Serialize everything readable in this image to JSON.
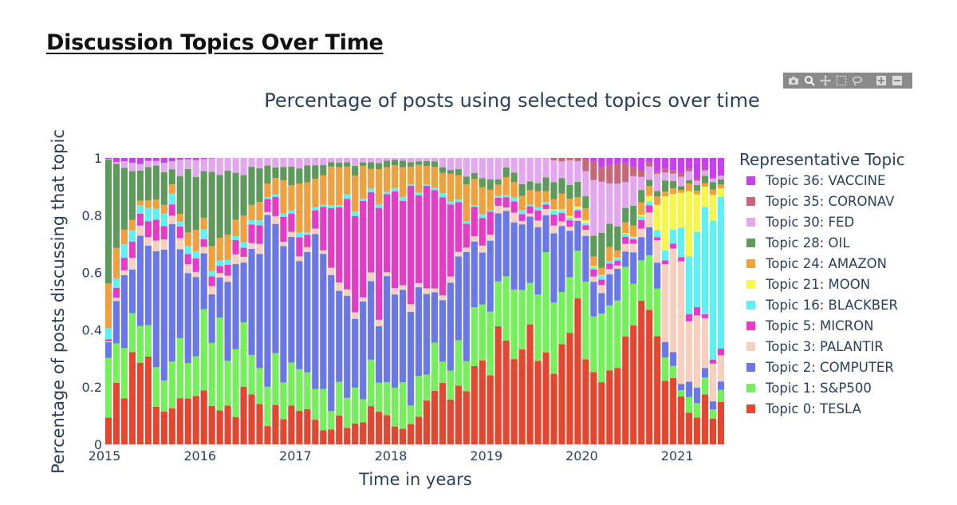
{
  "page": {
    "heading": "Discussion Topics Over Time"
  },
  "modebar": {
    "icons": [
      "camera-icon",
      "zoom-icon",
      "pan-icon",
      "box-select-icon",
      "lasso-icon",
      "zoom-in-icon",
      "zoom-out-icon"
    ]
  },
  "chart_data": {
    "type": "bar",
    "stacking": "normalized",
    "title": "Percentage of posts using selected topics over time",
    "xlabel": "Time in years",
    "ylabel": "Percentage of posts discussing that topic",
    "xlim": [
      2015,
      2021.5
    ],
    "ylim": [
      0,
      1
    ],
    "x_ticks": [
      "2015",
      "2016",
      "2017",
      "2018",
      "2019",
      "2020",
      "2021"
    ],
    "y_ticks": [
      "0",
      "0.2",
      "0.4",
      "0.6",
      "0.8",
      "1"
    ],
    "grid": false,
    "legend": {
      "title": "Representative Topic",
      "placement": "right",
      "entries": [
        "Topic 36: VACCINE",
        "Topic 35: CORONAVIRUS",
        "Topic 30: FED",
        "Topic 28: OIL",
        "Topic 24: AMAZON",
        "Topic 21: MOON",
        "Topic 16: BLACKBERRY",
        "Topic 5: MICRON",
        "Topic 3: PALANTIR",
        "Topic 2: COMPUTER",
        "Topic 1: S&P500",
        "Topic 0: TESLA"
      ]
    },
    "colors": {
      "Topic 0: TESLA": "#e5462f",
      "Topic 1: S&P500": "#74f05a",
      "Topic 2: COMPUTER": "#6a77e6",
      "Topic 3: PALANTIR": "#f7cfbf",
      "Topic 5: MICRON": "#e83ac8",
      "Topic 16: BLACKBERRY": "#5ff0f2",
      "Topic 21: MOON": "#f6f74a",
      "Topic 24: AMAZON": "#f0a03c",
      "Topic 28: OIL": "#5e9a5c",
      "Topic 30: FED": "#e3a7f0",
      "Topic 35: CORONAVIRUS": "#c8677a",
      "Topic 36: VACCINE": "#c940f0"
    },
    "anchors": [
      {
        "x": 2015.0,
        "Topic 0: TESLA": 0.07,
        "Topic 1: S&P500": 0.22,
        "Topic 2: COMPUTER": 0.07,
        "Topic 3: PALANTIR": 0.0,
        "Topic 5: MICRON": 0.0,
        "Topic 16: BLACKBERRY": 0.04,
        "Topic 21: MOON": 0.0,
        "Topic 24: AMAZON": 0.14,
        "Topic 28: OIL": 0.46,
        "Topic 30: FED": 0.0,
        "Topic 35: CORONAVIRUS": 0.0,
        "Topic 36: VACCINE": 0.0
      },
      {
        "x": 2015.3,
        "Topic 0: TESLA": 0.28,
        "Topic 1: S&P500": 0.14,
        "Topic 2: COMPUTER": 0.2,
        "Topic 3: PALANTIR": 0.03,
        "Topic 5: MICRON": 0.06,
        "Topic 16: BLACKBERRY": 0.04,
        "Topic 21: MOON": 0.0,
        "Topic 24: AMAZON": 0.02,
        "Topic 28: OIL": 0.19,
        "Topic 30: FED": 0.02,
        "Topic 35: CORONAVIRUS": 0.0,
        "Topic 36: VACCINE": 0.02
      },
      {
        "x": 2015.7,
        "Topic 0: TESLA": 0.13,
        "Topic 1: S&P500": 0.12,
        "Topic 2: COMPUTER": 0.45,
        "Topic 3: PALANTIR": 0.03,
        "Topic 5: MICRON": 0.06,
        "Topic 16: BLACKBERRY": 0.03,
        "Topic 21: MOON": 0.0,
        "Topic 24: AMAZON": 0.04,
        "Topic 28: OIL": 0.09,
        "Topic 30: FED": 0.04,
        "Topic 35: CORONAVIRUS": 0.0,
        "Topic 36: VACCINE": 0.01
      },
      {
        "x": 2016.2,
        "Topic 0: TESLA": 0.15,
        "Topic 1: S&P500": 0.28,
        "Topic 2: COMPUTER": 0.12,
        "Topic 3: PALANTIR": 0.02,
        "Topic 5: MICRON": 0.03,
        "Topic 16: BLACKBERRY": 0.02,
        "Topic 21: MOON": 0.0,
        "Topic 24: AMAZON": 0.07,
        "Topic 28: OIL": 0.26,
        "Topic 30: FED": 0.05,
        "Topic 35: CORONAVIRUS": 0.0,
        "Topic 36: VACCINE": 0.0
      },
      {
        "x": 2016.7,
        "Topic 0: TESLA": 0.11,
        "Topic 1: S&P500": 0.13,
        "Topic 2: COMPUTER": 0.52,
        "Topic 3: PALANTIR": 0.02,
        "Topic 5: MICRON": 0.05,
        "Topic 16: BLACKBERRY": 0.01,
        "Topic 21: MOON": 0.0,
        "Topic 24: AMAZON": 0.07,
        "Topic 28: OIL": 0.06,
        "Topic 30: FED": 0.03,
        "Topic 35: CORONAVIRUS": 0.0,
        "Topic 36: VACCINE": 0.0
      },
      {
        "x": 2017.2,
        "Topic 0: TESLA": 0.08,
        "Topic 1: S&P500": 0.14,
        "Topic 2: COMPUTER": 0.5,
        "Topic 3: PALANTIR": 0.02,
        "Topic 5: MICRON": 0.07,
        "Topic 16: BLACKBERRY": 0.01,
        "Topic 21: MOON": 0.0,
        "Topic 24: AMAZON": 0.12,
        "Topic 28: OIL": 0.04,
        "Topic 30: FED": 0.02,
        "Topic 35: CORONAVIRUS": 0.0,
        "Topic 36: VACCINE": 0.0
      },
      {
        "x": 2017.6,
        "Topic 0: TESLA": 0.09,
        "Topic 1: S&P500": 0.12,
        "Topic 2: COMPUTER": 0.3,
        "Topic 3: PALANTIR": 0.02,
        "Topic 5: MICRON": 0.32,
        "Topic 16: BLACKBERRY": 0.01,
        "Topic 21: MOON": 0.0,
        "Topic 24: AMAZON": 0.1,
        "Topic 28: OIL": 0.02,
        "Topic 30: FED": 0.02,
        "Topic 35: CORONAVIRUS": 0.0,
        "Topic 36: VACCINE": 0.0
      },
      {
        "x": 2018.0,
        "Topic 0: TESLA": 0.08,
        "Topic 1: S&P500": 0.1,
        "Topic 2: COMPUTER": 0.3,
        "Topic 3: PALANTIR": 0.02,
        "Topic 5: MICRON": 0.38,
        "Topic 16: BLACKBERRY": 0.01,
        "Topic 21: MOON": 0.0,
        "Topic 24: AMAZON": 0.08,
        "Topic 28: OIL": 0.02,
        "Topic 30: FED": 0.01,
        "Topic 35: CORONAVIRUS": 0.0,
        "Topic 36: VACCINE": 0.0
      },
      {
        "x": 2018.4,
        "Topic 0: TESLA": 0.13,
        "Topic 1: S&P500": 0.13,
        "Topic 2: COMPUTER": 0.24,
        "Topic 3: PALANTIR": 0.02,
        "Topic 5: MICRON": 0.35,
        "Topic 16: BLACKBERRY": 0.01,
        "Topic 21: MOON": 0.0,
        "Topic 24: AMAZON": 0.09,
        "Topic 28: OIL": 0.02,
        "Topic 30: FED": 0.01,
        "Topic 35: CORONAVIRUS": 0.0,
        "Topic 36: VACCINE": 0.0
      },
      {
        "x": 2018.8,
        "Topic 0: TESLA": 0.2,
        "Topic 1: S&P500": 0.15,
        "Topic 2: COMPUTER": 0.3,
        "Topic 3: PALANTIR": 0.02,
        "Topic 5: MICRON": 0.12,
        "Topic 16: BLACKBERRY": 0.01,
        "Topic 21: MOON": 0.0,
        "Topic 24: AMAZON": 0.11,
        "Topic 28: OIL": 0.03,
        "Topic 30: FED": 0.06,
        "Topic 35: CORONAVIRUS": 0.0,
        "Topic 36: VACCINE": 0.0
      },
      {
        "x": 2019.2,
        "Topic 0: TESLA": 0.38,
        "Topic 1: S&P500": 0.22,
        "Topic 2: COMPUTER": 0.2,
        "Topic 3: PALANTIR": 0.02,
        "Topic 5: MICRON": 0.03,
        "Topic 16: BLACKBERRY": 0.01,
        "Topic 21: MOON": 0.0,
        "Topic 24: AMAZON": 0.05,
        "Topic 28: OIL": 0.03,
        "Topic 30: FED": 0.06,
        "Topic 35: CORONAVIRUS": 0.0,
        "Topic 36: VACCINE": 0.0
      },
      {
        "x": 2019.6,
        "Topic 0: TESLA": 0.3,
        "Topic 1: S&P500": 0.28,
        "Topic 2: COMPUTER": 0.2,
        "Topic 3: PALANTIR": 0.02,
        "Topic 5: MICRON": 0.03,
        "Topic 16: BLACKBERRY": 0.01,
        "Topic 21: MOON": 0.0,
        "Topic 24: AMAZON": 0.05,
        "Topic 28: OIL": 0.04,
        "Topic 30: FED": 0.07,
        "Topic 35: CORONAVIRUS": 0.0,
        "Topic 36: VACCINE": 0.0
      },
      {
        "x": 2020.0,
        "Topic 0: TESLA": 0.38,
        "Topic 1: S&P500": 0.24,
        "Topic 2: COMPUTER": 0.16,
        "Topic 3: PALANTIR": 0.02,
        "Topic 5: MICRON": 0.02,
        "Topic 16: BLACKBERRY": 0.01,
        "Topic 21: MOON": 0.01,
        "Topic 24: AMAZON": 0.04,
        "Topic 28: OIL": 0.04,
        "Topic 30: FED": 0.06,
        "Topic 35: CORONAVIRUS": 0.02,
        "Topic 36: VACCINE": 0.0
      },
      {
        "x": 2020.25,
        "Topic 0: TESLA": 0.2,
        "Topic 1: S&P500": 0.2,
        "Topic 2: COMPUTER": 0.08,
        "Topic 3: PALANTIR": 0.02,
        "Topic 5: MICRON": 0.02,
        "Topic 16: BLACKBERRY": 0.01,
        "Topic 21: MOON": 0.0,
        "Topic 24: AMAZON": 0.04,
        "Topic 28: OIL": 0.12,
        "Topic 30: FED": 0.18,
        "Topic 35: CORONAVIRUS": 0.1,
        "Topic 36: VACCINE": 0.03
      },
      {
        "x": 2020.7,
        "Topic 0: TESLA": 0.52,
        "Topic 1: S&P500": 0.16,
        "Topic 2: COMPUTER": 0.1,
        "Topic 3: PALANTIR": 0.03,
        "Topic 5: MICRON": 0.02,
        "Topic 16: BLACKBERRY": 0.01,
        "Topic 21: MOON": 0.01,
        "Topic 24: AMAZON": 0.03,
        "Topic 28: OIL": 0.03,
        "Topic 30: FED": 0.05,
        "Topic 35: CORONAVIRUS": 0.01,
        "Topic 36: VACCINE": 0.03
      },
      {
        "x": 2021.0,
        "Topic 0: TESLA": 0.14,
        "Topic 1: S&P500": 0.04,
        "Topic 2: COMPUTER": 0.04,
        "Topic 3: PALANTIR": 0.36,
        "Topic 5: MICRON": 0.02,
        "Topic 16: BLACKBERRY": 0.05,
        "Topic 21: MOON": 0.22,
        "Topic 24: AMAZON": 0.02,
        "Topic 28: OIL": 0.02,
        "Topic 30: FED": 0.03,
        "Topic 35: CORONAVIRUS": 0.01,
        "Topic 36: VACCINE": 0.05
      },
      {
        "x": 2021.45,
        "Topic 0: TESLA": 0.12,
        "Topic 1: S&P500": 0.05,
        "Topic 2: COMPUTER": 0.06,
        "Topic 3: PALANTIR": 0.08,
        "Topic 5: MICRON": 0.02,
        "Topic 16: BLACKBERRY": 0.5,
        "Topic 21: MOON": 0.05,
        "Topic 24: AMAZON": 0.02,
        "Topic 28: OIL": 0.02,
        "Topic 30: FED": 0.02,
        "Topic 35: CORONAVIRUS": 0.0,
        "Topic 36: VACCINE": 0.06
      }
    ],
    "bar_count": 78
  },
  "legend_labels": [
    "Topic 36: VACCINE",
    "Topic 35: CORONAV",
    "Topic 30: FED",
    "Topic 28: OIL",
    "Topic 24: AMAZON",
    "Topic 21: MOON",
    "Topic 16: BLACKBER",
    "Topic 5: MICRON",
    "Topic 3: PALANTIR",
    "Topic 2: COMPUTER",
    "Topic 1: S&P500",
    "Topic 0: TESLA"
  ],
  "legend_title_visible": "Representative Topic"
}
